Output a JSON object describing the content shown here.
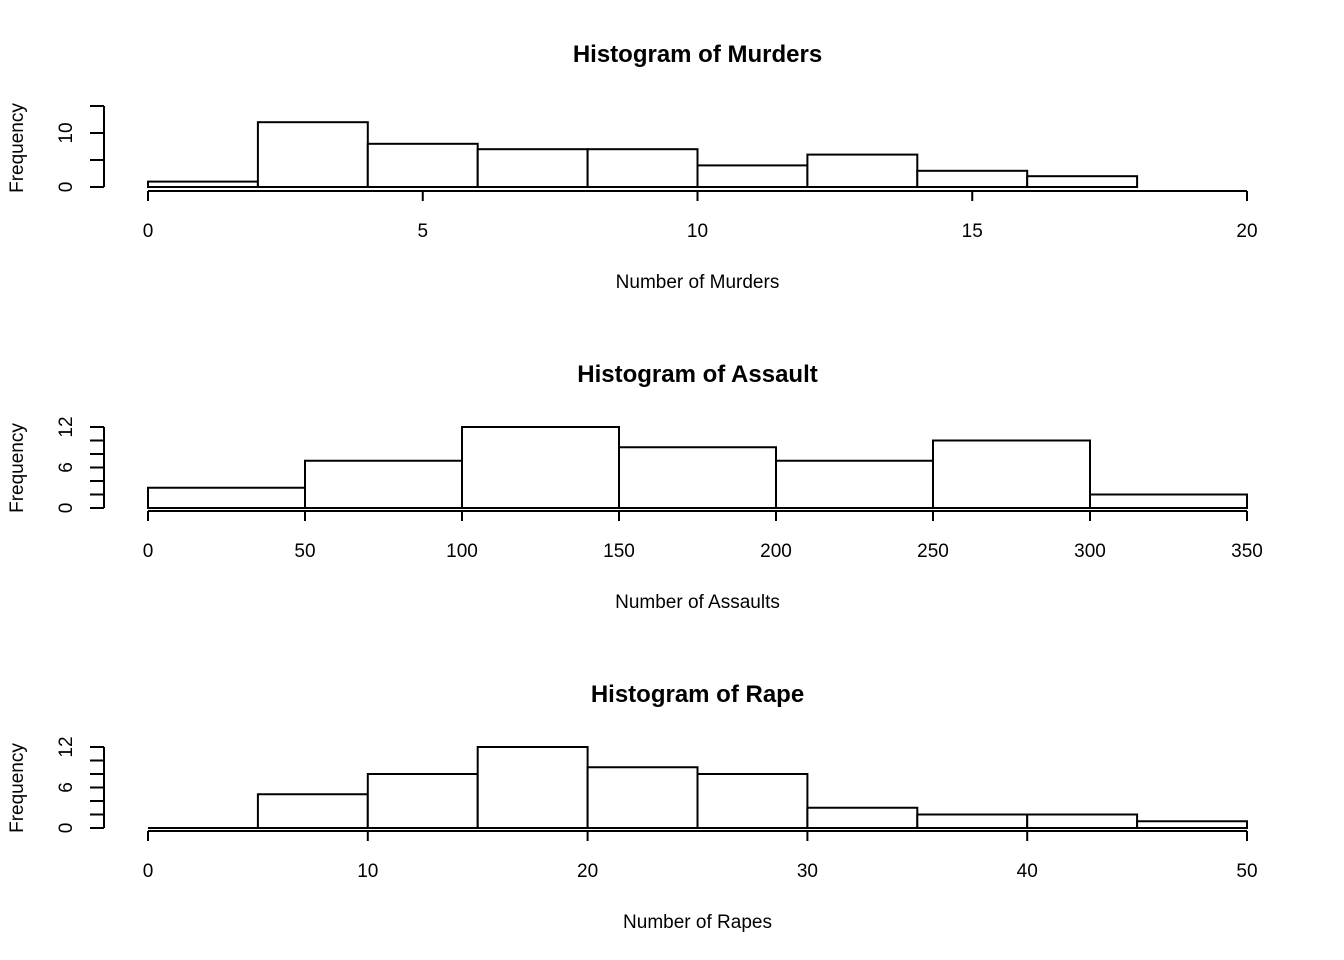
{
  "chart_data": [
    {
      "type": "bar",
      "title": "Histogram of Murders",
      "xlabel": "Number of Murders",
      "ylabel": "Frequency",
      "bins": [
        [
          0,
          2
        ],
        [
          2,
          4
        ],
        [
          4,
          6
        ],
        [
          6,
          8
        ],
        [
          8,
          10
        ],
        [
          10,
          12
        ],
        [
          12,
          14
        ],
        [
          14,
          16
        ],
        [
          16,
          18
        ]
      ],
      "values": [
        1,
        12,
        8,
        7,
        7,
        4,
        6,
        3,
        2
      ],
      "xlim": [
        0,
        20
      ],
      "ylim": [
        0,
        15
      ],
      "xticks": [
        0,
        5,
        10,
        15,
        20
      ],
      "xtick_labels": [
        "0",
        "5",
        "10",
        "15",
        "20"
      ],
      "yticks": [
        0,
        5,
        10,
        15
      ],
      "ytick_labels": [
        "0",
        "",
        "10",
        ""
      ]
    },
    {
      "type": "bar",
      "title": "Histogram of Assault",
      "xlabel": "Number of Assaults",
      "ylabel": "Frequency",
      "bins": [
        [
          0,
          50
        ],
        [
          50,
          100
        ],
        [
          100,
          150
        ],
        [
          150,
          200
        ],
        [
          200,
          250
        ],
        [
          250,
          300
        ],
        [
          300,
          350
        ]
      ],
      "values": [
        3,
        7,
        12,
        9,
        7,
        10,
        2
      ],
      "xlim": [
        0,
        350
      ],
      "ylim": [
        0,
        12
      ],
      "xticks": [
        0,
        50,
        100,
        150,
        200,
        250,
        300,
        350
      ],
      "xtick_labels": [
        "0",
        "50",
        "100",
        "150",
        "200",
        "250",
        "300",
        "350"
      ],
      "yticks": [
        0,
        2,
        4,
        6,
        8,
        10,
        12
      ],
      "ytick_labels": [
        "0",
        "",
        "",
        "6",
        "",
        "",
        "12"
      ]
    },
    {
      "type": "bar",
      "title": "Histogram of Rape",
      "xlabel": "Number of Rapes",
      "ylabel": "Frequency",
      "bins": [
        [
          0,
          5
        ],
        [
          5,
          10
        ],
        [
          10,
          15
        ],
        [
          15,
          20
        ],
        [
          20,
          25
        ],
        [
          25,
          30
        ],
        [
          30,
          35
        ],
        [
          35,
          40
        ],
        [
          40,
          45
        ],
        [
          45,
          50
        ]
      ],
      "values": [
        0,
        5,
        8,
        12,
        9,
        8,
        3,
        2,
        2,
        1
      ],
      "xlim": [
        0,
        50
      ],
      "ylim": [
        0,
        12
      ],
      "xticks": [
        0,
        10,
        20,
        30,
        40,
        50
      ],
      "xtick_labels": [
        "0",
        "10",
        "20",
        "30",
        "40",
        "50"
      ],
      "yticks": [
        0,
        2,
        4,
        6,
        8,
        10,
        12
      ],
      "ytick_labels": [
        "0",
        "",
        "",
        "6",
        "",
        "",
        "12"
      ]
    }
  ]
}
